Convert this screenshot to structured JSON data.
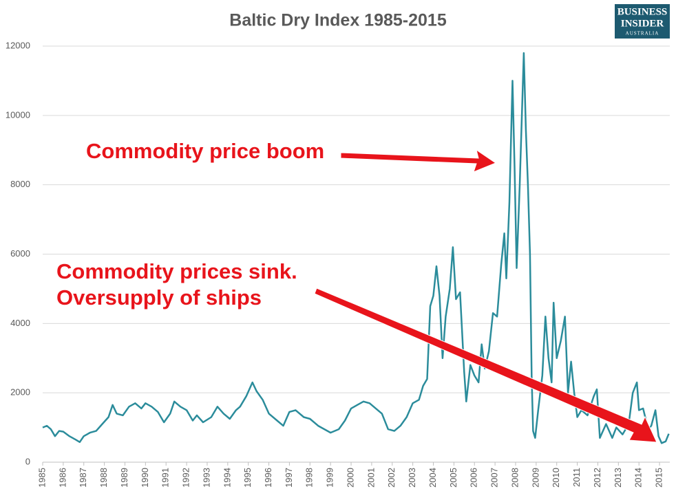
{
  "chart_data": {
    "type": "line",
    "title": "Baltic Dry Index 1985-2015",
    "logo": [
      "BUSINESS",
      "INSIDER",
      "AUSTRALIA"
    ],
    "annotations": [
      "Commodity price boom",
      "Commodity prices sink.",
      "Oversupply of ships"
    ],
    "xlim": [
      1985,
      2015.5
    ],
    "xticks": [
      1985,
      1986,
      1987,
      1988,
      1989,
      1990,
      1991,
      1992,
      1993,
      1994,
      1995,
      1996,
      1997,
      1998,
      1999,
      2000,
      2001,
      2002,
      2003,
      2004,
      2005,
      2006,
      2007,
      2008,
      2009,
      2010,
      2011,
      2012,
      2013,
      2014,
      2015
    ],
    "ylim": [
      0,
      12000
    ],
    "yticks": [
      0,
      2000,
      4000,
      6000,
      8000,
      10000,
      12000
    ],
    "grid": true,
    "series": [
      {
        "name": "Baltic Dry Index",
        "color": "#2b8c9b",
        "x": [
          1985,
          1985.2,
          1985.4,
          1985.6,
          1985.8,
          1986.0,
          1986.3,
          1986.6,
          1986.8,
          1987.0,
          1987.3,
          1987.6,
          1987.9,
          1988.2,
          1988.4,
          1988.6,
          1988.9,
          1989.2,
          1989.5,
          1989.8,
          1990.0,
          1990.3,
          1990.6,
          1990.9,
          1991.2,
          1991.4,
          1991.7,
          1992.0,
          1992.3,
          1992.5,
          1992.8,
          1993.2,
          1993.5,
          1993.8,
          1994.1,
          1994.4,
          1994.6,
          1994.9,
          1995.2,
          1995.4,
          1995.7,
          1996.0,
          1996.4,
          1996.7,
          1997.0,
          1997.3,
          1997.7,
          1998.0,
          1998.4,
          1998.7,
          1999.0,
          1999.4,
          1999.7,
          2000.0,
          2000.3,
          2000.6,
          2000.9,
          2001.2,
          2001.5,
          2001.8,
          2002.1,
          2002.4,
          2002.7,
          2003.0,
          2003.3,
          2003.5,
          2003.7,
          2003.85,
          2004.0,
          2004.15,
          2004.3,
          2004.45,
          2004.6,
          2004.8,
          2004.95,
          2005.1,
          2005.3,
          2005.5,
          2005.6,
          2005.8,
          2006.0,
          2006.2,
          2006.35,
          2006.5,
          2006.7,
          2006.9,
          2007.1,
          2007.3,
          2007.45,
          2007.55,
          2007.7,
          2007.85,
          2007.95,
          2008.05,
          2008.2,
          2008.4,
          2008.5,
          2008.6,
          2008.7,
          2008.78,
          2008.85,
          2008.95,
          2009.1,
          2009.3,
          2009.45,
          2009.6,
          2009.75,
          2009.85,
          2010.0,
          2010.2,
          2010.4,
          2010.55,
          2010.7,
          2010.85,
          2011.0,
          2011.2,
          2011.5,
          2011.8,
          2011.95,
          2012.1,
          2012.4,
          2012.7,
          2012.9,
          2013.2,
          2013.5,
          2013.7,
          2013.9,
          2014.0,
          2014.2,
          2014.45,
          2014.6,
          2014.8,
          2014.95,
          2015.1,
          2015.3,
          2015.45
        ],
        "values": [
          1000,
          1050,
          950,
          750,
          900,
          880,
          750,
          650,
          580,
          750,
          850,
          900,
          1100,
          1300,
          1650,
          1400,
          1350,
          1600,
          1700,
          1550,
          1700,
          1600,
          1450,
          1150,
          1400,
          1750,
          1600,
          1500,
          1200,
          1350,
          1150,
          1300,
          1600,
          1400,
          1250,
          1500,
          1600,
          1900,
          2300,
          2050,
          1800,
          1400,
          1200,
          1050,
          1450,
          1500,
          1300,
          1250,
          1050,
          950,
          850,
          950,
          1200,
          1550,
          1650,
          1750,
          1700,
          1550,
          1400,
          950,
          900,
          1050,
          1300,
          1700,
          1800,
          2200,
          2400,
          4500,
          4800,
          5650,
          4800,
          3000,
          4200,
          5000,
          6200,
          4700,
          4900,
          2600,
          1750,
          2800,
          2500,
          2300,
          3400,
          2700,
          3200,
          4300,
          4200,
          5700,
          6600,
          5300,
          7500,
          11000,
          8500,
          5600,
          8000,
          11800,
          9600,
          8000,
          6000,
          2500,
          900,
          700,
          1500,
          2500,
          4200,
          3000,
          2300,
          4600,
          3000,
          3500,
          4200,
          2000,
          2900,
          2000,
          1300,
          1500,
          1350,
          1900,
          2100,
          700,
          1100,
          700,
          1000,
          800,
          1100,
          2000,
          2300,
          1500,
          1550,
          950,
          1050,
          1500,
          750,
          550,
          600,
          820
        ]
      }
    ]
  }
}
